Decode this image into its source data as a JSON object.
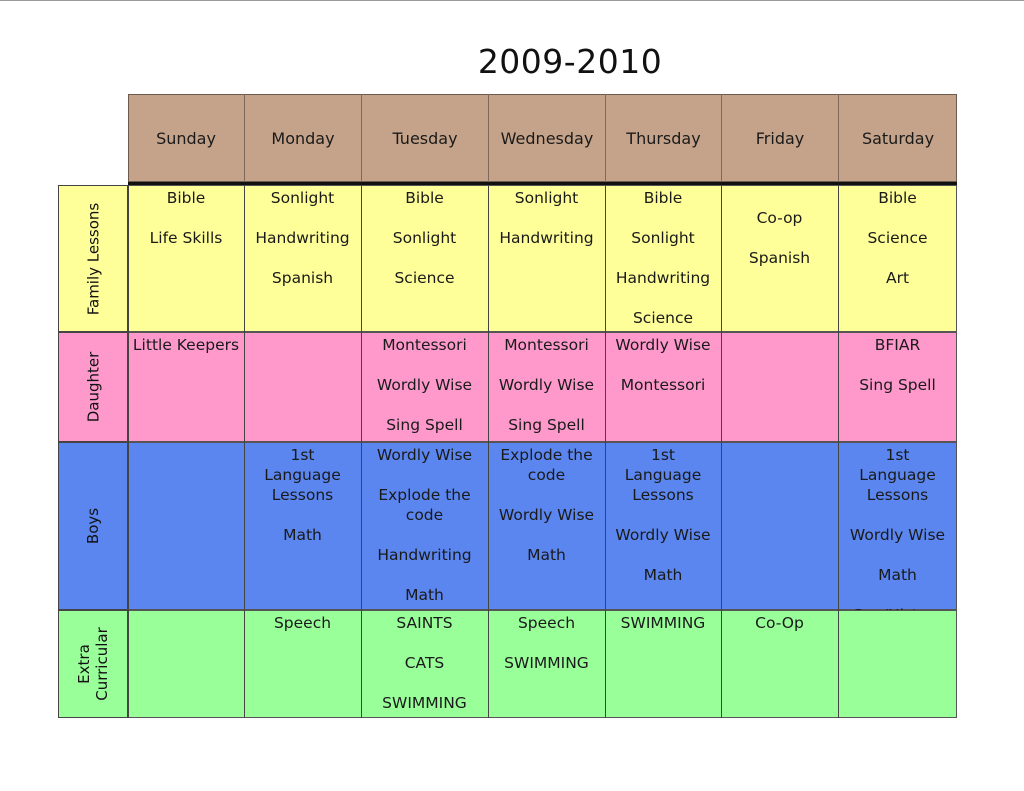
{
  "title": "2009-2010",
  "days": [
    "Sunday",
    "Monday",
    "Tuesday",
    "Wednesday",
    "Thursday",
    "Friday",
    "Saturday"
  ],
  "rows": [
    {
      "label": "Family Lessons",
      "color": "#ffff99",
      "cells": [
        [
          "Bible",
          "Life Skills"
        ],
        [
          "Sonlight",
          "Handwriting",
          "Spanish"
        ],
        [
          "Bible",
          "Sonlight",
          "Science"
        ],
        [
          "Sonlight",
          "Handwriting"
        ],
        [
          "Bible",
          "Sonlight",
          "Handwriting",
          "Science"
        ],
        [
          "Co-op",
          "Spanish"
        ],
        [
          "Bible",
          "Science",
          "Art"
        ]
      ]
    },
    {
      "label": "Daughter",
      "color": "#ff99cc",
      "cells": [
        [
          "Little Keepers"
        ],
        [],
        [
          "Montessori",
          "Wordly Wise",
          "Sing Spell"
        ],
        [
          "Montessori",
          "Wordly Wise",
          "Sing Spell"
        ],
        [
          "Wordly Wise",
          "Montessori"
        ],
        [],
        [
          "BFIAR",
          "Sing Spell"
        ]
      ]
    },
    {
      "label": "Boys",
      "color": "#5b86ef",
      "cells": [
        [],
        [
          "1st Language Lessons",
          "Math"
        ],
        [
          "Wordly Wise",
          "Explode the code",
          "Handwriting",
          "Math"
        ],
        [
          "Explode the code",
          "Wordly Wise",
          "Math"
        ],
        [
          "1st Language Lessons",
          "Wordly Wise",
          "Math"
        ],
        [],
        [
          "1st Language Lessons",
          "Wordly Wise",
          "Math",
          "Geo/History"
        ]
      ]
    },
    {
      "label": "Extra Curricular",
      "color": "#99ff99",
      "cells": [
        [],
        [
          "Speech"
        ],
        [
          "SAINTS",
          "CATS",
          "SWIMMING"
        ],
        [
          "Speech",
          "SWIMMING"
        ],
        [
          "SWIMMING"
        ],
        [
          "Co-Op"
        ],
        []
      ]
    }
  ],
  "colors": {
    "header": "#c5a38a"
  }
}
